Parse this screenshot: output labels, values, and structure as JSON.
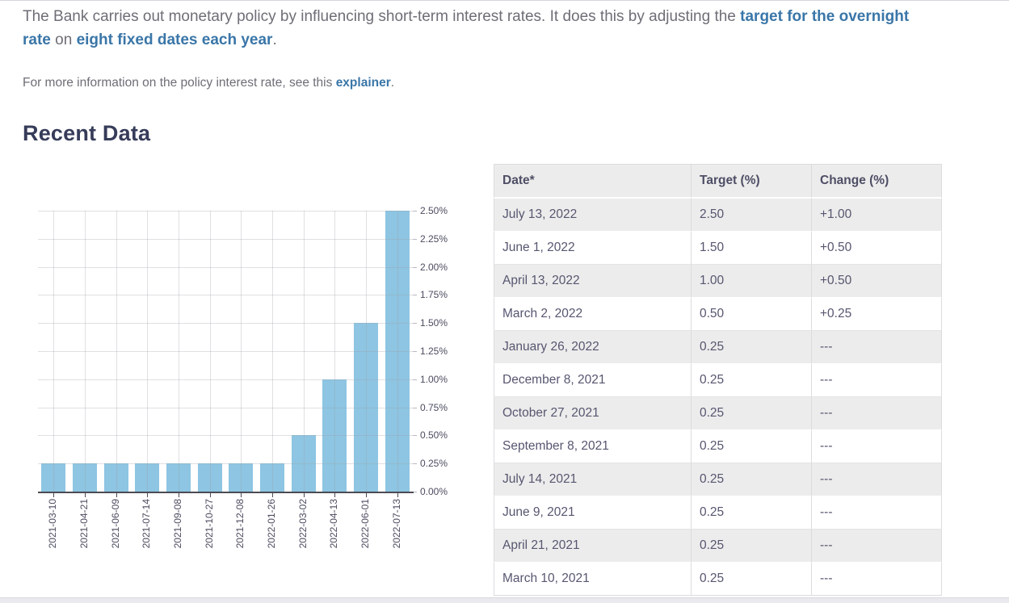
{
  "intro": {
    "text1": "The Bank carries out monetary policy by influencing short-term interest rates. It does this by adjusting the ",
    "link1": "target for the overnight rate",
    "text2": " on ",
    "link2": "eight fixed dates each year",
    "text3": "."
  },
  "more_info": {
    "text1": "For more information on the policy interest rate, see this ",
    "link1": "explainer",
    "text2": "."
  },
  "section_title": "Recent Data",
  "colors": {
    "link": "#3a76a8",
    "bar": "#8dc5e2",
    "body": "#6e6e77",
    "heading": "#363c59",
    "table_text": "#565670",
    "stripe_bg": "#ececec",
    "axis_text": "#4c4c60"
  },
  "chart_data": {
    "type": "bar",
    "title": "",
    "xlabel": "",
    "ylabel": "",
    "categories": [
      "2021-03-10",
      "2021-04-21",
      "2021-06-09",
      "2021-07-14",
      "2021-09-08",
      "2021-10-27",
      "2021-12-08",
      "2022-01-26",
      "2022-03-02",
      "2022-04-13",
      "2022-06-01",
      "2022-07-13"
    ],
    "values": [
      0.25,
      0.25,
      0.25,
      0.25,
      0.25,
      0.25,
      0.25,
      0.25,
      0.5,
      1.0,
      1.5,
      2.5
    ],
    "ylim": [
      0,
      2.5
    ],
    "ytick_values": [
      2.5,
      2.25,
      2.0,
      1.75,
      1.5,
      1.25,
      1.0,
      0.75,
      0.5,
      0.25,
      0
    ],
    "ytick_labels": [
      "2.50%",
      "2.25%",
      "2.00%",
      "1.75%",
      "1.50%",
      "1.25%",
      "1.00%",
      "0.75%",
      "0.50%",
      "0.25%",
      "0.00%"
    ],
    "grid": true,
    "legend": "none",
    "y_axis_position": "right"
  },
  "table": {
    "columns": [
      "Date*",
      "Target (%)",
      "Change (%)"
    ],
    "rows": [
      {
        "date": "July 13, 2022",
        "target": "2.50",
        "change": "+1.00"
      },
      {
        "date": "June 1, 2022",
        "target": "1.50",
        "change": "+0.50"
      },
      {
        "date": "April 13, 2022",
        "target": "1.00",
        "change": "+0.50"
      },
      {
        "date": "March 2, 2022",
        "target": "0.50",
        "change": "+0.25"
      },
      {
        "date": "January 26, 2022",
        "target": "0.25",
        "change": "---"
      },
      {
        "date": "December 8, 2021",
        "target": "0.25",
        "change": "---"
      },
      {
        "date": "October 27, 2021",
        "target": "0.25",
        "change": "---"
      },
      {
        "date": "September 8, 2021",
        "target": "0.25",
        "change": "---"
      },
      {
        "date": "July 14, 2021",
        "target": "0.25",
        "change": "---"
      },
      {
        "date": "June 9, 2021",
        "target": "0.25",
        "change": "---"
      },
      {
        "date": "April 21, 2021",
        "target": "0.25",
        "change": "---"
      },
      {
        "date": "March 10, 2021",
        "target": "0.25",
        "change": "---"
      }
    ]
  }
}
